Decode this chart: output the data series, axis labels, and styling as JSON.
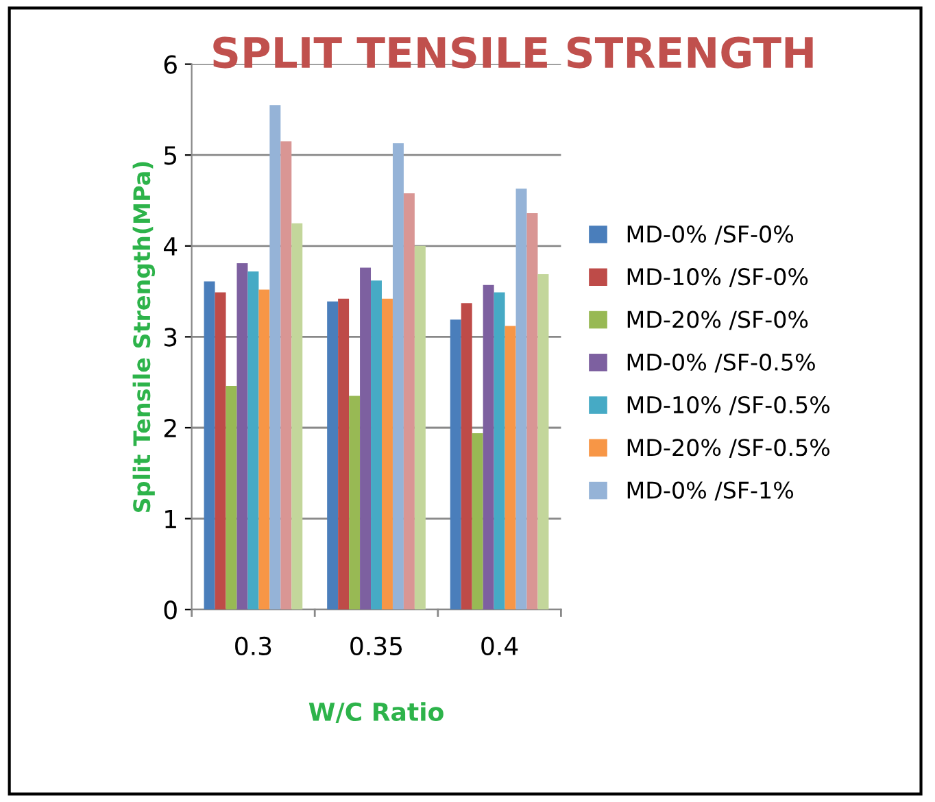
{
  "chart_data": {
    "type": "bar",
    "title": "SPLIT TENSILE STRENGTH",
    "xlabel": "W/C Ratio",
    "ylabel": "Split Tensile Strength(MPa)",
    "categories": [
      "0.3",
      "0.35",
      "0.4"
    ],
    "series": [
      {
        "name": "MD-0% /SF-0%",
        "color": "#4a7ebb",
        "values": [
          3.61,
          3.39,
          3.19
        ]
      },
      {
        "name": "MD-10% /SF-0%",
        "color": "#be4b48",
        "values": [
          3.49,
          3.42,
          3.37
        ]
      },
      {
        "name": "MD-20% /SF-0%",
        "color": "#98b954",
        "values": [
          2.46,
          2.35,
          1.94
        ]
      },
      {
        "name": "MD-0% /SF-0.5%",
        "color": "#7d60a0",
        "values": [
          3.81,
          3.76,
          3.57
        ]
      },
      {
        "name": "MD-10% /SF-0.5%",
        "color": "#46aac5",
        "values": [
          3.72,
          3.62,
          3.49
        ]
      },
      {
        "name": "MD-20% /SF-0.5%",
        "color": "#f79646",
        "values": [
          3.52,
          3.42,
          3.12
        ]
      },
      {
        "name": "MD-0% /SF-1%",
        "color": "#95b3d7",
        "values": [
          5.55,
          5.13,
          4.63
        ]
      },
      {
        "color": "#d99694",
        "values": [
          5.15,
          4.58,
          4.36
        ]
      },
      {
        "color": "#c3d69b",
        "values": [
          4.25,
          4.0,
          3.69
        ]
      }
    ],
    "ylim": [
      0,
      6
    ],
    "yticks": [
      0,
      1,
      2,
      3,
      4,
      5,
      6
    ],
    "grid": "y",
    "legend": "right"
  }
}
